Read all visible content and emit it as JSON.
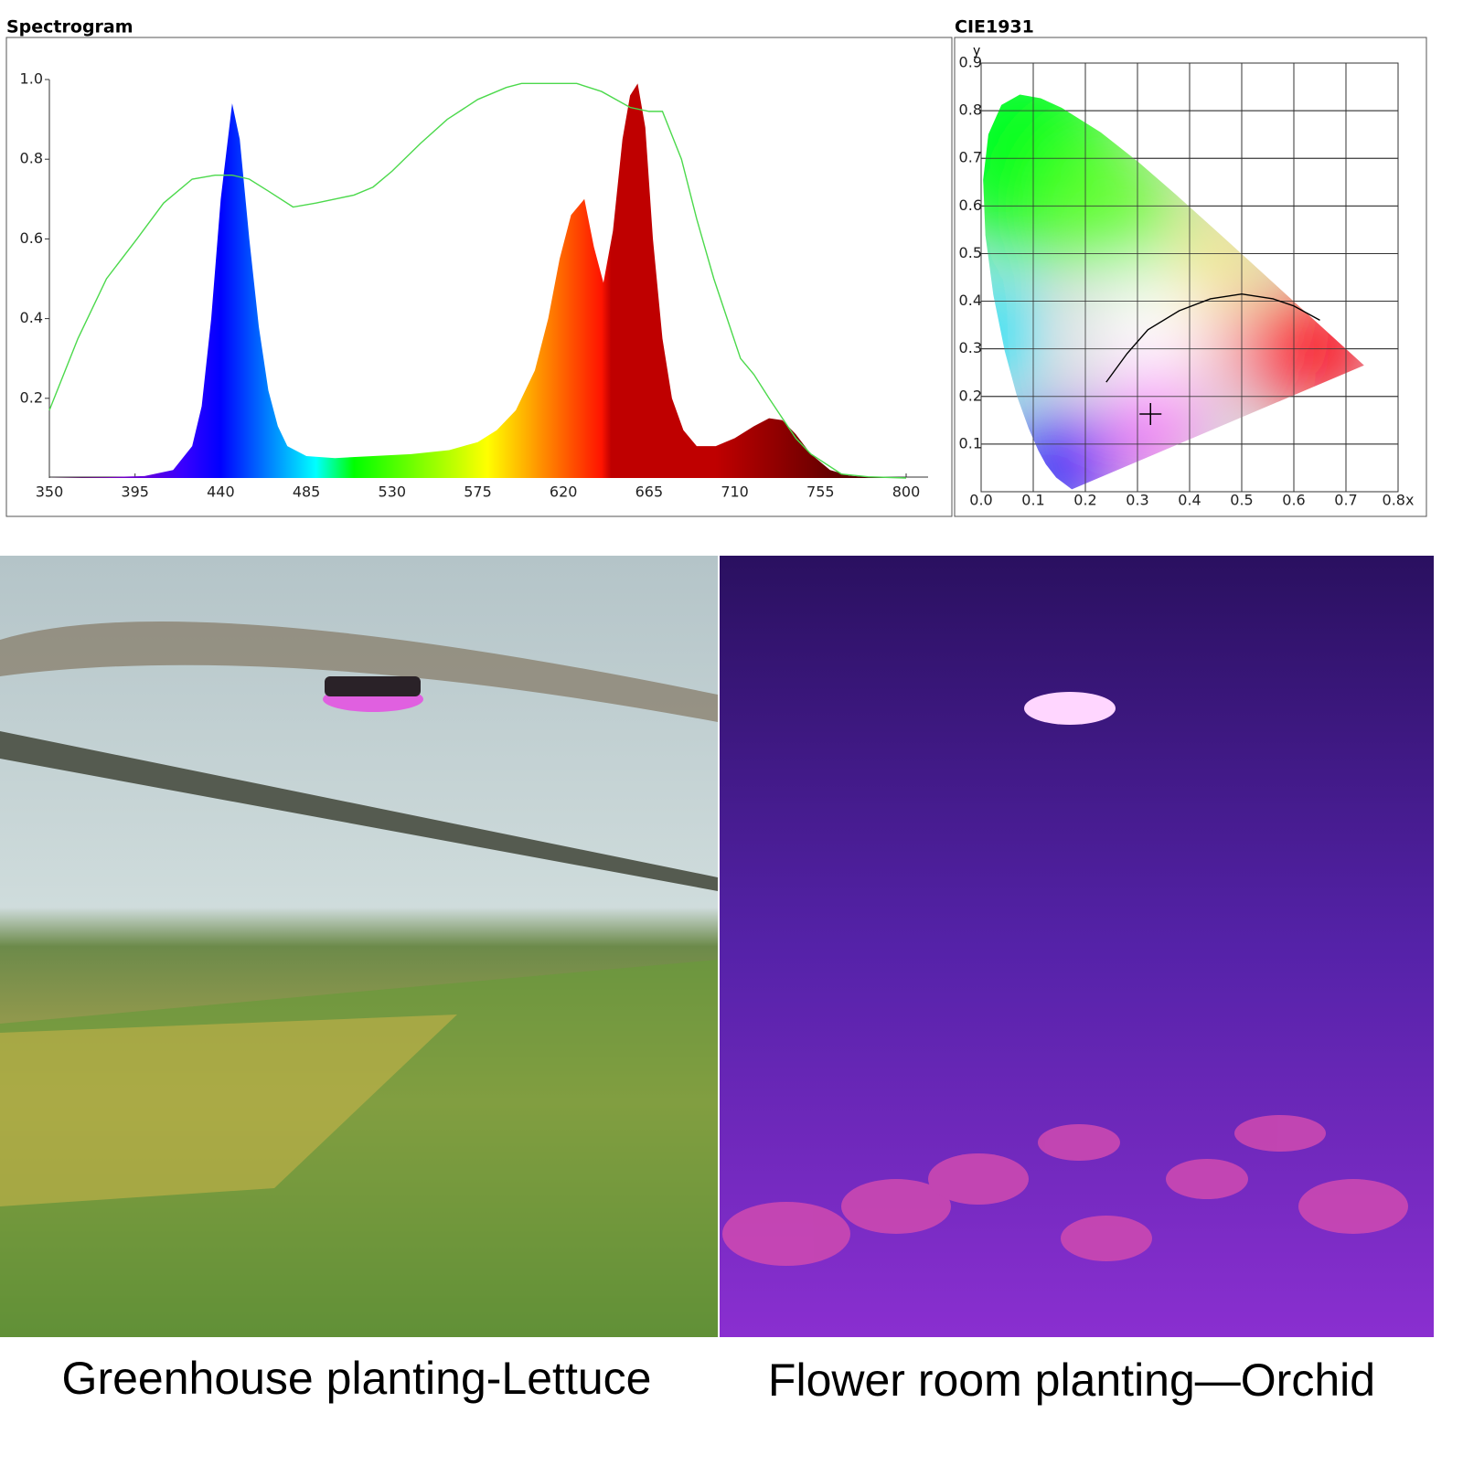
{
  "chart_data": [
    {
      "type": "line",
      "title": "Spectrogram",
      "grid": false,
      "xlim": [
        350,
        800
      ],
      "ylim": [
        0,
        1
      ],
      "xticks": [
        350,
        395,
        440,
        485,
        530,
        575,
        620,
        665,
        710,
        755,
        800
      ],
      "yticks": [
        0.2,
        0.4,
        0.6,
        0.8,
        {
          "value": 1,
          "label": "1.0"
        }
      ],
      "series": [
        {
          "fill": "wavelength",
          "x": [
            350,
            380,
            400,
            415,
            425,
            430,
            435,
            440,
            446,
            450,
            455,
            460,
            465,
            470,
            475,
            485,
            500,
            520,
            540,
            560,
            575,
            585,
            595,
            605,
            612,
            618,
            624,
            631,
            636,
            641,
            646,
            651,
            655,
            659,
            663,
            667,
            672,
            677,
            683,
            690,
            700,
            710,
            720,
            728,
            735,
            742,
            750,
            760,
            770,
            780,
            800
          ],
          "values": [
            0,
            0.002,
            0.005,
            0.02,
            0.08,
            0.18,
            0.4,
            0.7,
            0.94,
            0.85,
            0.6,
            0.38,
            0.22,
            0.13,
            0.08,
            0.055,
            0.05,
            0.055,
            0.06,
            0.07,
            0.09,
            0.12,
            0.17,
            0.27,
            0.4,
            0.55,
            0.66,
            0.7,
            0.58,
            0.49,
            0.62,
            0.85,
            0.96,
            0.99,
            0.88,
            0.6,
            0.35,
            0.2,
            0.12,
            0.08,
            0.08,
            0.1,
            0.13,
            0.15,
            0.145,
            0.11,
            0.06,
            0.02,
            0.006,
            0.002,
            0
          ]
        },
        {
          "color": "#4cd94c",
          "x": [
            350,
            365,
            380,
            396,
            410,
            425,
            437,
            446,
            455,
            465,
            478,
            490,
            500,
            510,
            520,
            530,
            545,
            559,
            575,
            590,
            598,
            610,
            627,
            640,
            655,
            665,
            672,
            682,
            690,
            699,
            706,
            713,
            720,
            728,
            735,
            742,
            750,
            766,
            780,
            800
          ],
          "values": [
            0.17,
            0.35,
            0.5,
            0.6,
            0.69,
            0.75,
            0.76,
            0.76,
            0.75,
            0.72,
            0.68,
            0.69,
            0.7,
            0.71,
            0.73,
            0.77,
            0.84,
            0.9,
            0.95,
            0.98,
            0.99,
            0.99,
            0.99,
            0.97,
            0.93,
            0.92,
            0.92,
            0.8,
            0.65,
            0.5,
            0.4,
            0.3,
            0.26,
            0.2,
            0.15,
            0.1,
            0.06,
            0.01,
            0.003,
            0
          ]
        }
      ]
    },
    {
      "type": "chromaticity",
      "title": "CIE1931",
      "y_label": "y",
      "grid": true,
      "xlim": [
        0,
        0.8
      ],
      "ylim": [
        0,
        0.9
      ],
      "xticks": [
        {
          "value": 0,
          "label": "0.0"
        },
        0.1,
        0.2,
        0.3,
        0.4,
        0.5,
        0.6,
        0.7,
        {
          "value": 0.8,
          "label": "0.8x"
        }
      ],
      "yticks": [
        0.1,
        0.2,
        0.3,
        0.4,
        0.5,
        0.6,
        0.7,
        0.8,
        0.9
      ],
      "series": [
        {
          "fill": "chromaticity",
          "x": [
            0.1741,
            0.144,
            0.1241,
            0.1096,
            0.0913,
            0.0687,
            0.0454,
            0.0235,
            0.0082,
            0.0039,
            0.0139,
            0.0389,
            0.0743,
            0.1142,
            0.1547,
            0.2296,
            0.3016,
            0.3731,
            0.4441,
            0.5125,
            0.5752,
            0.627,
            0.6915,
            0.7347
          ],
          "values": [
            0.005,
            0.0297,
            0.0578,
            0.0868,
            0.1327,
            0.2007,
            0.295,
            0.4127,
            0.5384,
            0.6548,
            0.7502,
            0.812,
            0.8338,
            0.8262,
            0.8059,
            0.7543,
            0.6923,
            0.6245,
            0.5547,
            0.4866,
            0.4242,
            0.3725,
            0.3083,
            0.2653
          ]
        },
        {
          "color": "#000000",
          "x": [
            0.24,
            0.28,
            0.32,
            0.38,
            0.44,
            0.5,
            0.56,
            0.6,
            0.65
          ],
          "values": [
            0.23,
            0.29,
            0.34,
            0.38,
            0.405,
            0.415,
            0.405,
            0.39,
            0.36
          ]
        },
        {
          "color": "#000000",
          "marker": "+",
          "x": [
            0.325
          ],
          "values": [
            0.163
          ]
        }
      ]
    }
  ],
  "photos": [
    {
      "caption": "Greenhouse planting-Lettuce"
    },
    {
      "caption": "Flower room planting—Orchid"
    }
  ]
}
